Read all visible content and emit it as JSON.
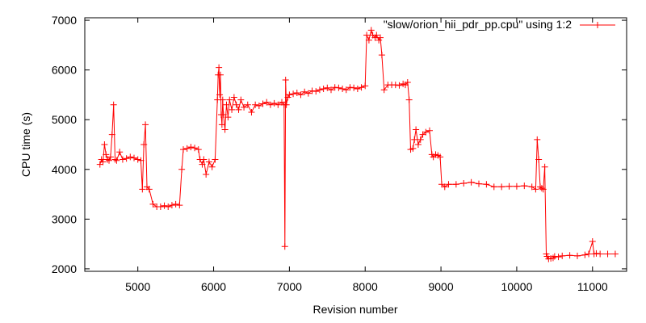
{
  "chart_data": {
    "type": "line",
    "title": "",
    "xlabel": "Revision number",
    "ylabel": "CPU time (s)",
    "xlim": [
      4300,
      11450
    ],
    "ylim": [
      1950,
      7050
    ],
    "x_ticks": [
      5000,
      6000,
      7000,
      8000,
      9000,
      10000,
      11000
    ],
    "y_ticks": [
      2000,
      3000,
      4000,
      5000,
      6000,
      7000
    ],
    "x_tick_labels": [
      "5000",
      "6000",
      "7000",
      "8000",
      "9000",
      "10000",
      "11000"
    ],
    "y_tick_labels": [
      "2000",
      "3000",
      "4000",
      "5000",
      "6000",
      "7000"
    ],
    "grid": false,
    "legend_position": "top-right",
    "series": [
      {
        "name": "\"slow/orion_hii_pdr_pp.cpu\" using 1:2",
        "color": "#ff0000",
        "marker": "plus",
        "x": [
          4500,
          4520,
          4540,
          4560,
          4580,
          4600,
          4620,
          4640,
          4660,
          4680,
          4700,
          4720,
          4760,
          4800,
          4850,
          4900,
          4950,
          5000,
          5040,
          5060,
          5080,
          5100,
          5120,
          5150,
          5200,
          5250,
          5300,
          5350,
          5400,
          5450,
          5500,
          5550,
          5580,
          5600,
          5650,
          5700,
          5750,
          5800,
          5820,
          5850,
          5870,
          5900,
          5940,
          5980,
          6020,
          6050,
          6060,
          6070,
          6080,
          6090,
          6100,
          6110,
          6120,
          6130,
          6150,
          6170,
          6190,
          6210,
          6240,
          6270,
          6300,
          6330,
          6360,
          6400,
          6450,
          6500,
          6550,
          6600,
          6650,
          6700,
          6750,
          6800,
          6850,
          6900,
          6930,
          6940,
          6950,
          6960,
          6980,
          7000,
          7050,
          7100,
          7150,
          7200,
          7250,
          7300,
          7350,
          7400,
          7450,
          7500,
          7550,
          7600,
          7650,
          7700,
          7750,
          7800,
          7850,
          7900,
          7950,
          8000,
          8020,
          8050,
          8080,
          8100,
          8130,
          8150,
          8180,
          8200,
          8220,
          8250,
          8300,
          8350,
          8400,
          8450,
          8500,
          8530,
          8560,
          8580,
          8600,
          8630,
          8650,
          8670,
          8700,
          8730,
          8760,
          8800,
          8850,
          8880,
          8900,
          8930,
          8960,
          8990,
          9010,
          9050,
          9100,
          9200,
          9300,
          9400,
          9500,
          9600,
          9700,
          9800,
          9900,
          10000,
          10100,
          10200,
          10250,
          10270,
          10290,
          10310,
          10330,
          10350,
          10370,
          10390,
          10400,
          10420,
          10450,
          10480,
          10500,
          10550,
          10600,
          10700,
          10800,
          10900,
          10950,
          11000,
          11020,
          11050,
          11100,
          11200,
          11300
        ],
        "y": [
          4100,
          4200,
          4150,
          4500,
          4300,
          4200,
          4180,
          4250,
          4700,
          5300,
          4200,
          4180,
          4350,
          4200,
          4220,
          4250,
          4230,
          4200,
          4180,
          3600,
          4500,
          4900,
          3650,
          3600,
          3300,
          3250,
          3250,
          3270,
          3250,
          3280,
          3300,
          3280,
          4000,
          4400,
          4420,
          4450,
          4430,
          4400,
          4200,
          4100,
          4200,
          3900,
          4150,
          4050,
          4200,
          5400,
          5900,
          6050,
          5500,
          5900,
          5100,
          4900,
          5400,
          5100,
          4800,
          5300,
          5050,
          5400,
          5200,
          5450,
          5300,
          5200,
          5400,
          5250,
          5300,
          5150,
          5300,
          5280,
          5320,
          5350,
          5300,
          5330,
          5300,
          5350,
          5300,
          2450,
          5800,
          5300,
          5450,
          5500,
          5520,
          5540,
          5500,
          5560,
          5530,
          5580,
          5570,
          5600,
          5620,
          5640,
          5600,
          5650,
          5640,
          5620,
          5600,
          5650,
          5640,
          5620,
          5650,
          5680,
          6700,
          6600,
          6800,
          6700,
          6650,
          6700,
          6600,
          6650,
          6300,
          5600,
          5700,
          5700,
          5700,
          5690,
          5720,
          5700,
          5750,
          5400,
          4400,
          4420,
          4600,
          4800,
          4500,
          4600,
          4700,
          4750,
          4780,
          4300,
          4250,
          4300,
          4280,
          4250,
          3700,
          3650,
          3700,
          3700,
          3720,
          3740,
          3710,
          3700,
          3650,
          3650,
          3660,
          3660,
          3670,
          3650,
          3600,
          4600,
          4200,
          3650,
          3620,
          3600,
          4050,
          2300,
          2250,
          2200,
          2210,
          2220,
          2250,
          2240,
          2260,
          2270,
          2260,
          2280,
          2300,
          2550,
          2300,
          2310,
          2300,
          2300,
          2300
        ]
      }
    ]
  }
}
